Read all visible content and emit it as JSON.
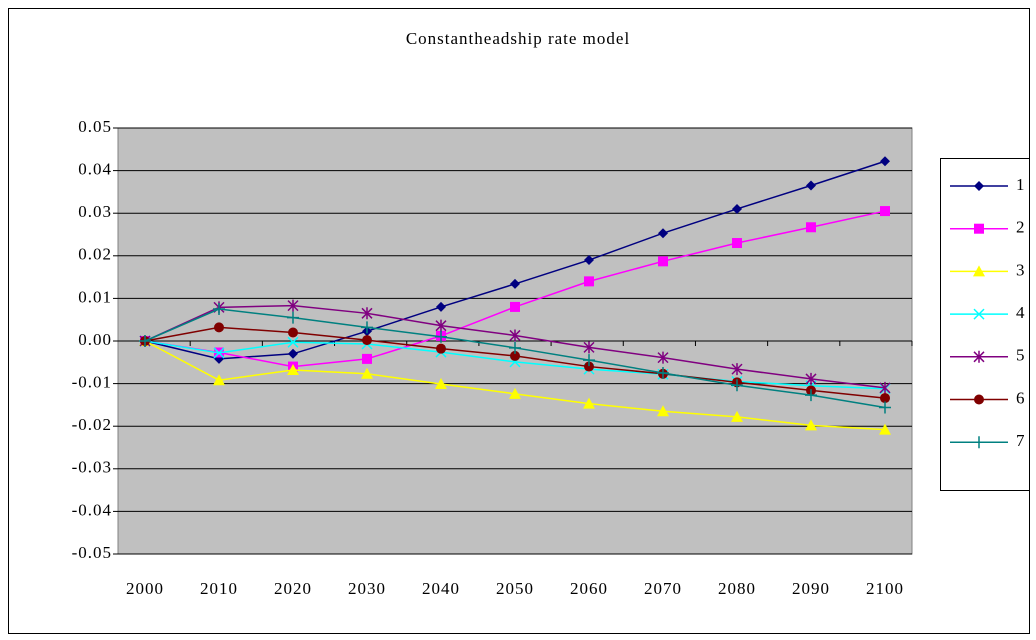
{
  "chart_data": {
    "type": "line",
    "title": "Constantheadship rate model",
    "categories": [
      "2000",
      "2010",
      "2020",
      "2030",
      "2040",
      "2050",
      "2060",
      "2070",
      "2080",
      "2090",
      "2100"
    ],
    "ylim": [
      -0.05,
      0.05
    ],
    "yticks": [
      0.05,
      0.04,
      0.03,
      0.02,
      0.01,
      {
        "value": 0,
        "label": "0.00"
      },
      -0.01,
      -0.02,
      -0.03,
      -0.04,
      -0.05
    ],
    "grid": true,
    "legend": "right",
    "series": [
      {
        "name": "1",
        "color": "#000080",
        "marker": "diamond",
        "values": [
          0,
          -0.0042,
          -0.003,
          0.0023,
          0.008,
          0.0134,
          0.019,
          0.0253,
          0.031,
          0.0365,
          0.0422
        ]
      },
      {
        "name": "2",
        "color": "#ff00ff",
        "marker": "square",
        "values": [
          0,
          -0.0027,
          -0.006,
          -0.0042,
          0.0012,
          0.008,
          0.014,
          0.0187,
          0.023,
          0.0267,
          0.0305
        ]
      },
      {
        "name": "3",
        "color": "#ffff00",
        "marker": "triangle",
        "values": [
          0,
          -0.0092,
          -0.0068,
          -0.0077,
          -0.0101,
          -0.0124,
          -0.0147,
          -0.0165,
          -0.0178,
          -0.0198,
          -0.0208
        ]
      },
      {
        "name": "4",
        "color": "#00ffff",
        "marker": "x",
        "values": [
          0,
          -0.0028,
          -0.0003,
          -0.0007,
          -0.0026,
          -0.0049,
          -0.0066,
          -0.0078,
          -0.0095,
          -0.0105,
          -0.0112
        ]
      },
      {
        "name": "5",
        "color": "#800080",
        "marker": "star",
        "values": [
          0,
          0.0079,
          0.0083,
          0.0065,
          0.0036,
          0.0013,
          -0.0015,
          -0.0039,
          -0.0066,
          -0.0089,
          -0.011
        ]
      },
      {
        "name": "6",
        "color": "#800000",
        "marker": "circle",
        "values": [
          0,
          0.0032,
          0.002,
          0.0002,
          -0.0018,
          -0.0035,
          -0.006,
          -0.0077,
          -0.0097,
          -0.0116,
          -0.0134
        ]
      },
      {
        "name": "7",
        "color": "#008080",
        "marker": "plus",
        "values": [
          0,
          0.0075,
          0.0055,
          0.0032,
          0.001,
          -0.0016,
          -0.0045,
          -0.0075,
          -0.0104,
          -0.0127,
          -0.0156
        ]
      }
    ]
  }
}
